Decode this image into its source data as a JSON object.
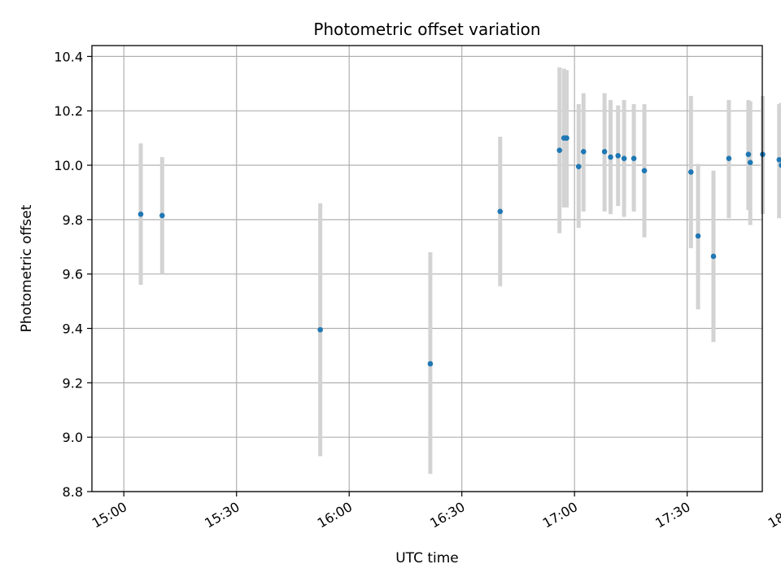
{
  "chart_data": {
    "type": "scatter",
    "title": "Photometric offset variation",
    "xlabel": "UTC time",
    "ylabel": "Photometric offset",
    "xlim_minutes": [
      891.5,
      1070
    ],
    "ylim": [
      8.8,
      10.44
    ],
    "grid": true,
    "legend": "none",
    "x_ticks": [
      "15:00",
      "15:30",
      "16:00",
      "16:30",
      "17:00",
      "17:30",
      "18:00"
    ],
    "y_ticks": [
      "8.8",
      "9.0",
      "9.2",
      "9.4",
      "9.6",
      "9.8",
      "10.0",
      "10.2",
      "10.4"
    ],
    "colors": {
      "point": "#1f77b4",
      "errorbar": "#d3d3d3",
      "grid": "#b0b0b0",
      "axes": "#000000"
    },
    "series": [
      {
        "points": [
          {
            "t": "15:04.5",
            "y": 9.82,
            "lo": 9.56,
            "hi": 10.08
          },
          {
            "t": "15:10.2",
            "y": 9.815,
            "lo": 9.6,
            "hi": 10.03
          },
          {
            "t": "15:52.3",
            "y": 9.395,
            "lo": 8.93,
            "hi": 9.86
          },
          {
            "t": "16:21.6",
            "y": 9.27,
            "lo": 8.865,
            "hi": 9.68
          },
          {
            "t": "16:40.2",
            "y": 9.83,
            "lo": 9.555,
            "hi": 10.105
          },
          {
            "t": "16:56.0",
            "y": 10.055,
            "lo": 9.75,
            "hi": 10.36
          },
          {
            "t": "16:57.2",
            "y": 10.1,
            "lo": 9.845,
            "hi": 10.355
          },
          {
            "t": "16:57.9",
            "y": 10.1,
            "lo": 9.845,
            "hi": 10.35
          },
          {
            "t": "17:01.1",
            "y": 9.995,
            "lo": 9.77,
            "hi": 10.225
          },
          {
            "t": "17:02.4",
            "y": 10.05,
            "lo": 9.83,
            "hi": 10.265
          },
          {
            "t": "17:08.0",
            "y": 10.05,
            "lo": 9.83,
            "hi": 10.265
          },
          {
            "t": "17:09.6",
            "y": 10.03,
            "lo": 9.82,
            "hi": 10.24
          },
          {
            "t": "17:11.6",
            "y": 10.035,
            "lo": 9.85,
            "hi": 10.22
          },
          {
            "t": "17:13.2",
            "y": 10.025,
            "lo": 9.81,
            "hi": 10.24
          },
          {
            "t": "17:15.8",
            "y": 10.025,
            "lo": 9.83,
            "hi": 10.225
          },
          {
            "t": "17:18.6",
            "y": 9.98,
            "lo": 9.735,
            "hi": 10.225
          },
          {
            "t": "17:31.0",
            "y": 9.975,
            "lo": 9.695,
            "hi": 10.255
          },
          {
            "t": "17:32.9",
            "y": 9.74,
            "lo": 9.47,
            "hi": 10.005
          },
          {
            "t": "17:37.0",
            "y": 9.665,
            "lo": 9.35,
            "hi": 9.98
          },
          {
            "t": "17:41.1",
            "y": 10.025,
            "lo": 9.805,
            "hi": 10.24
          },
          {
            "t": "17:46.3",
            "y": 10.04,
            "lo": 9.835,
            "hi": 10.24
          },
          {
            "t": "17:46.8",
            "y": 10.01,
            "lo": 9.78,
            "hi": 10.235
          },
          {
            "t": "17:50.1",
            "y": 10.04,
            "lo": 9.82,
            "hi": 10.255
          },
          {
            "t": "17:54.5",
            "y": 10.02,
            "lo": 9.805,
            "hi": 10.225
          },
          {
            "t": "17:55.1",
            "y": 10.0,
            "lo": 9.805,
            "hi": 10.23
          },
          {
            "t": "17:55.6",
            "y": 10.02,
            "lo": 9.805,
            "hi": 10.235
          },
          {
            "t": "17:59.3",
            "y": 10.055,
            "lo": 9.85,
            "hi": 10.26
          },
          {
            "t": "18:00.0",
            "y": 10.065,
            "lo": 9.87,
            "hi": 10.245
          },
          {
            "t": "18:02.4",
            "y": 10.025,
            "lo": 9.81,
            "hi": 10.235
          },
          {
            "t": "18:07.4",
            "y": 9.925,
            "lo": 9.72,
            "hi": 10.125
          },
          {
            "t": "18:11.2",
            "y": 9.88,
            "lo": 9.665,
            "hi": 10.095
          },
          {
            "t": "18:18.6",
            "y": 9.62,
            "lo": 9.38,
            "hi": 9.855
          }
        ]
      }
    ]
  }
}
